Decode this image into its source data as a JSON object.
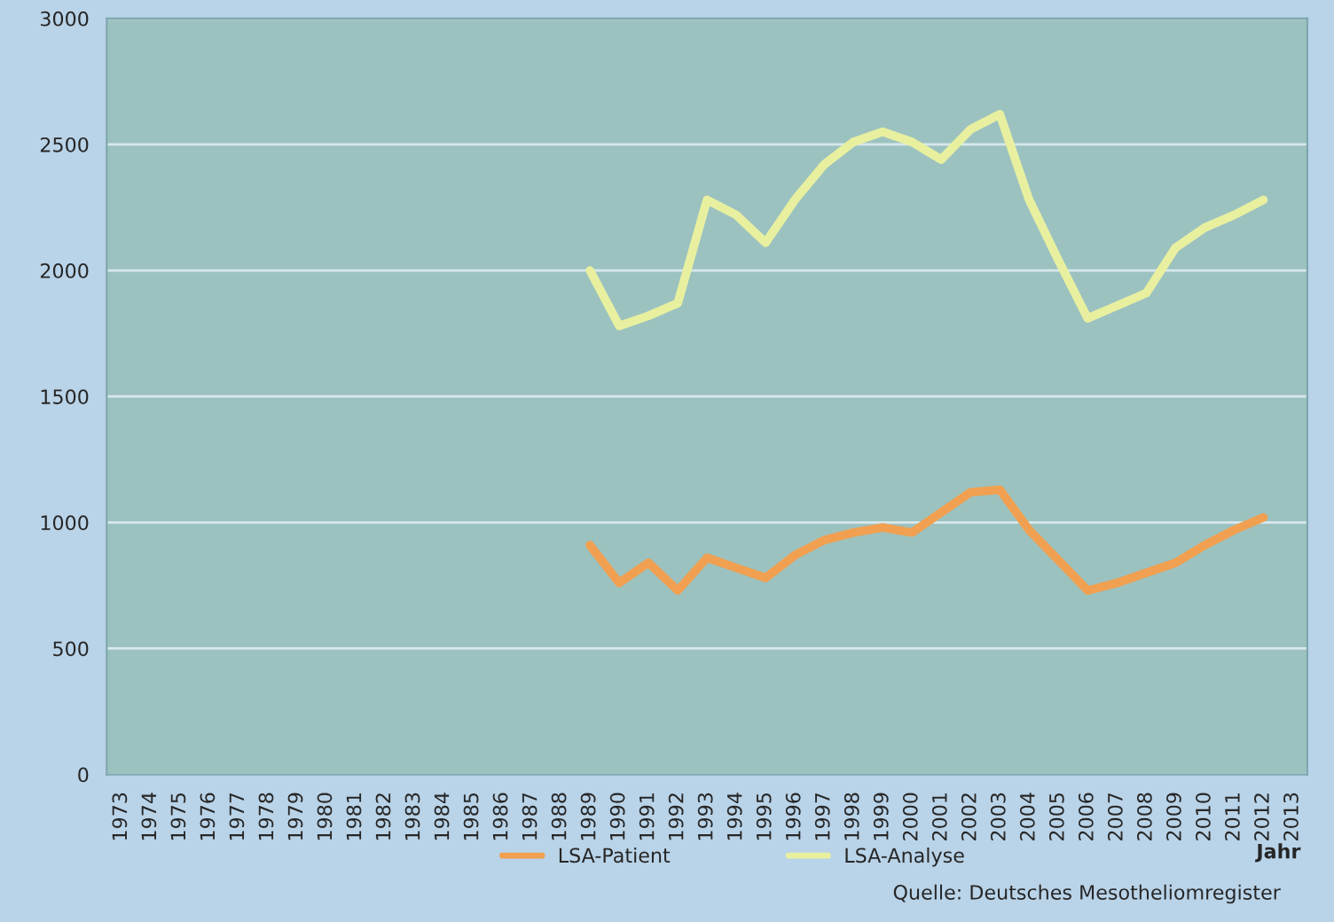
{
  "chart_data": {
    "type": "line",
    "xlabel": "Jahr",
    "categories": [
      "1973",
      "1974",
      "1975",
      "1976",
      "1977",
      "1978",
      "1979",
      "1980",
      "1981",
      "1982",
      "1983",
      "1984",
      "1985",
      "1986",
      "1987",
      "1988",
      "1989",
      "1990",
      "1991",
      "1992",
      "1993",
      "1994",
      "1995",
      "1996",
      "1997",
      "1998",
      "1999",
      "2000",
      "2001",
      "2002",
      "2003",
      "2004",
      "2005",
      "2006",
      "2007",
      "2008",
      "2009",
      "2010",
      "2011",
      "2012",
      "2013"
    ],
    "series": [
      {
        "name": "LSA-Patient",
        "color": "#f0a050",
        "values": [
          null,
          null,
          null,
          null,
          null,
          null,
          null,
          null,
          null,
          null,
          null,
          null,
          null,
          null,
          null,
          null,
          910,
          760,
          840,
          730,
          860,
          820,
          780,
          870,
          930,
          960,
          980,
          960,
          1040,
          1120,
          1130,
          970,
          850,
          730,
          760,
          800,
          840,
          910,
          970,
          1020,
          null
        ]
      },
      {
        "name": "LSA-Analyse",
        "color": "#e8f0a0",
        "values": [
          null,
          null,
          null,
          null,
          null,
          null,
          null,
          null,
          null,
          null,
          null,
          null,
          null,
          null,
          null,
          null,
          2000,
          1780,
          1820,
          1870,
          2280,
          2220,
          2110,
          2280,
          2420,
          2510,
          2550,
          2510,
          2440,
          2560,
          2620,
          2280,
          2040,
          1810,
          1860,
          1910,
          2090,
          2170,
          2220,
          2280,
          null
        ]
      }
    ],
    "ylim": [
      0,
      3000
    ],
    "yticks": [
      0,
      500,
      1000,
      1500,
      2000,
      2500,
      3000
    ],
    "grid": "y",
    "legend": "bottom",
    "marker": "none",
    "line_style": "solid",
    "annotations": [
      "Quelle: Deutsches Mesotheliomregister"
    ]
  }
}
